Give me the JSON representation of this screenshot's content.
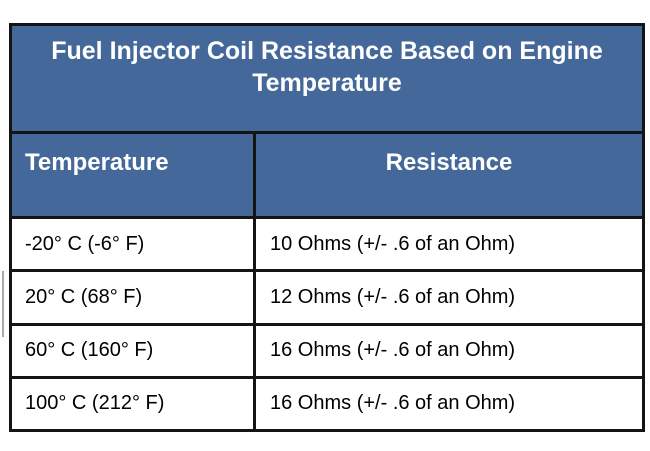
{
  "chart_data": {
    "type": "table",
    "title": "Fuel Injector Coil Resistance Based on Engine Temperature",
    "columns": [
      "Temperature",
      "Resistance"
    ],
    "rows": [
      [
        "-20° C (-6° F)",
        "10 Ohms (+/- .6 of an Ohm)"
      ],
      [
        "20° C (68° F)",
        "12 Ohms (+/- .6 of an Ohm)"
      ],
      [
        "60° C (160° F)",
        "16 Ohms (+/- .6 of an Ohm)"
      ],
      [
        "100° C (212° F)",
        "16 Ohms (+/- .6 of an Ohm)"
      ]
    ],
    "numeric": {
      "temperature_c": [
        -20,
        20,
        60,
        100
      ],
      "temperature_f": [
        -6,
        68,
        160,
        212
      ],
      "resistance_ohms": [
        10,
        12,
        16,
        16
      ],
      "tolerance_ohms": 0.6
    },
    "layout": {
      "legend": "none",
      "grid": "table-borders"
    },
    "colors": {
      "header_background": "#45689a",
      "header_text": "#ffffff",
      "body_background": "#ffffff",
      "body_text": "#000000",
      "border": "#141414"
    }
  }
}
